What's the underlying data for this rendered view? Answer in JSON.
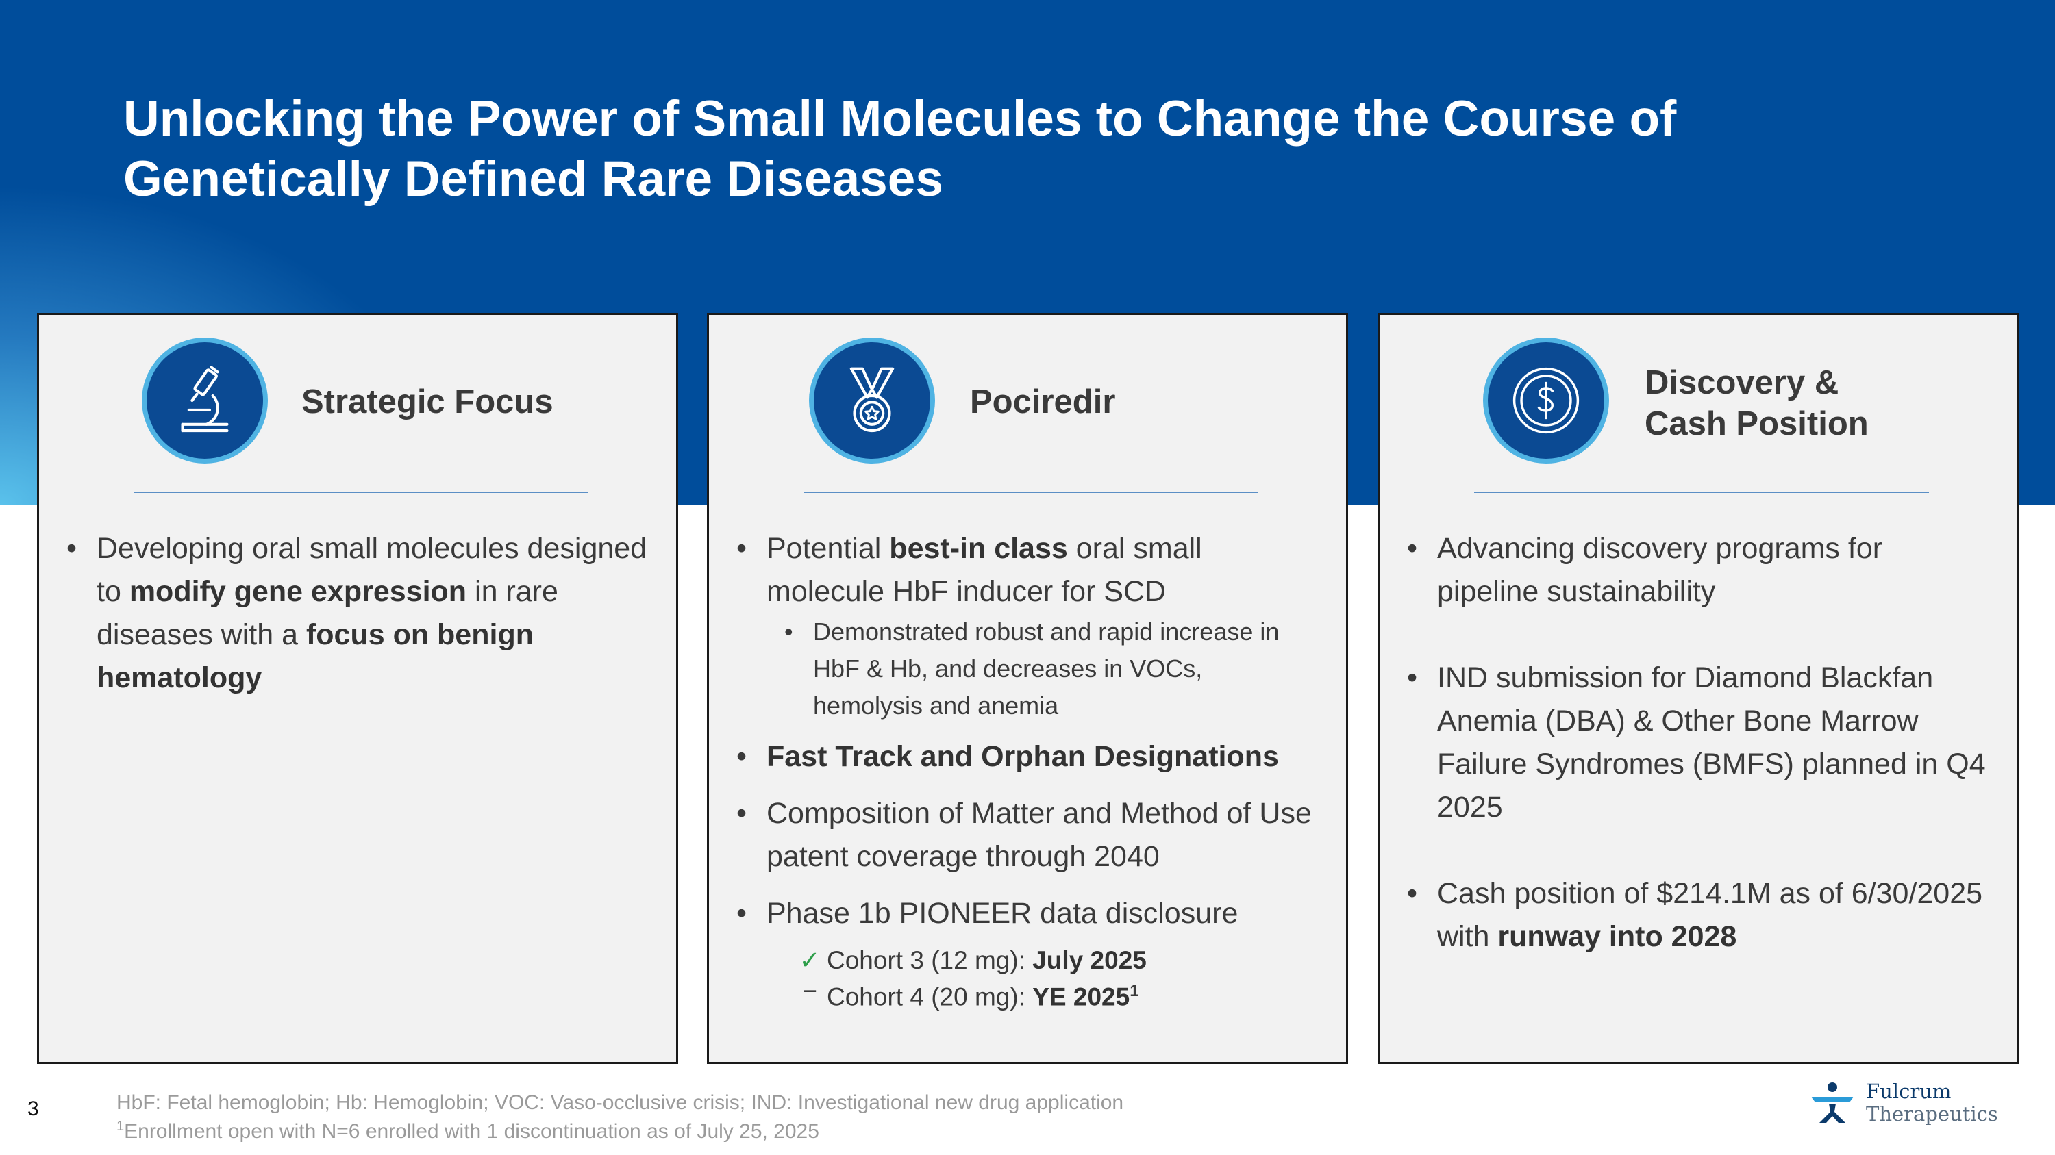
{
  "slide": {
    "title_line1": "Unlocking the Power of Small Molecules to Change the Course of",
    "title_line2": "Genetically Defined Rare Diseases",
    "page_number": "3"
  },
  "panels": {
    "strategic": {
      "title": "Strategic Focus",
      "icon": "microscope-icon",
      "bullet1": {
        "t1": "Developing oral small molecules designed to ",
        "b1": "modify gene expression",
        "t2": " in rare diseases with a ",
        "b2": "focus on benign hematology"
      }
    },
    "pociredir": {
      "title": "Pociredir",
      "icon": "award-medal-icon",
      "bullet1": {
        "t1": "Potential ",
        "b1": "best-in class",
        "t2": " oral small molecule HbF inducer for SCD"
      },
      "sub1": "Demonstrated robust and rapid increase in HbF & Hb, and decreases in VOCs, hemolysis and anemia",
      "bullet2": "Fast Track and Orphan Designations",
      "bullet3": "Composition of Matter and Method of Use patent coverage through 2040",
      "bullet4": "Phase 1b PIONEER data disclosure",
      "cohort3": {
        "mark": "✓",
        "label": "Cohort 3 (12 mg): ",
        "value": "July 2025"
      },
      "cohort4": {
        "mark": "−",
        "label": "Cohort 4 (20 mg): ",
        "value": "YE 2025",
        "sup": "1"
      }
    },
    "discovery": {
      "title_line1": "Discovery &",
      "title_line2": "Cash Position",
      "icon": "dollar-coin-icon",
      "bullet1": "Advancing discovery programs for pipeline sustainability",
      "bullet2": "IND submission for Diamond Blackfan Anemia (DBA) & Other Bone Marrow Failure Syndromes (BMFS) planned in Q4 2025",
      "bullet3": {
        "t1": "Cash position of $214.1M as of 6/30/2025 with ",
        "b1": "runway into 2028"
      }
    }
  },
  "footnotes": {
    "line1": "HbF: Fetal hemoglobin; Hb: Hemoglobin; VOC: Vaso-occlusive crisis; IND: Investigational new drug application",
    "line2_sup": "1",
    "line2": "Enrollment open with N=6 enrolled with 1 discontinuation as of July 25, 2025"
  },
  "logo": {
    "line1": "Fulcrum",
    "line2": "Therapeutics",
    "icon": "fulcrum-logo-icon"
  },
  "colors": {
    "header_band": "#004d9b",
    "accent": "#4fb3e3",
    "panel_bg": "#f2f2f2",
    "check": "#2e9e4a"
  }
}
